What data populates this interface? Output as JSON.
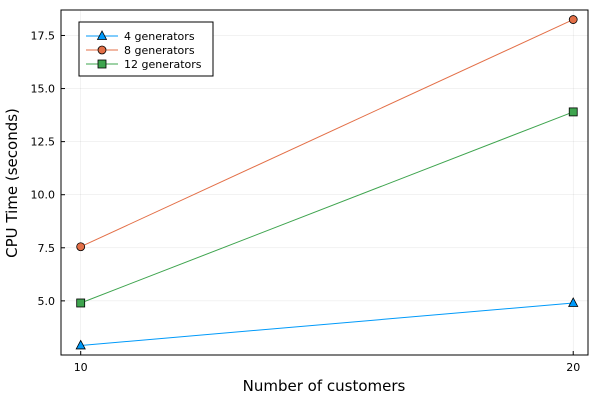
{
  "chart_data": {
    "type": "line",
    "xlabel": "Number of customers",
    "ylabel": "CPU Time (seconds)",
    "xticks": [
      10,
      20
    ],
    "yticks": [
      5.0,
      7.5,
      10.0,
      12.5,
      15.0,
      17.5
    ],
    "ytick_labels": [
      "5.0",
      "7.5",
      "10.0",
      "12.5",
      "15.0",
      "17.5"
    ],
    "xlim": [
      9.6,
      20.3
    ],
    "ylim": [
      2.45,
      18.7
    ],
    "grid": true,
    "legend_position": "top-left",
    "x": [
      10,
      20
    ],
    "series": [
      {
        "name": "4 generators",
        "values": [
          2.9,
          4.9
        ],
        "color": "#009AFA",
        "marker": "triangle"
      },
      {
        "name": "8 generators",
        "values": [
          7.55,
          18.25
        ],
        "color": "#E36F47",
        "marker": "circle"
      },
      {
        "name": "12 generators",
        "values": [
          4.9,
          13.9
        ],
        "color": "#3EA44E",
        "marker": "square"
      }
    ]
  }
}
